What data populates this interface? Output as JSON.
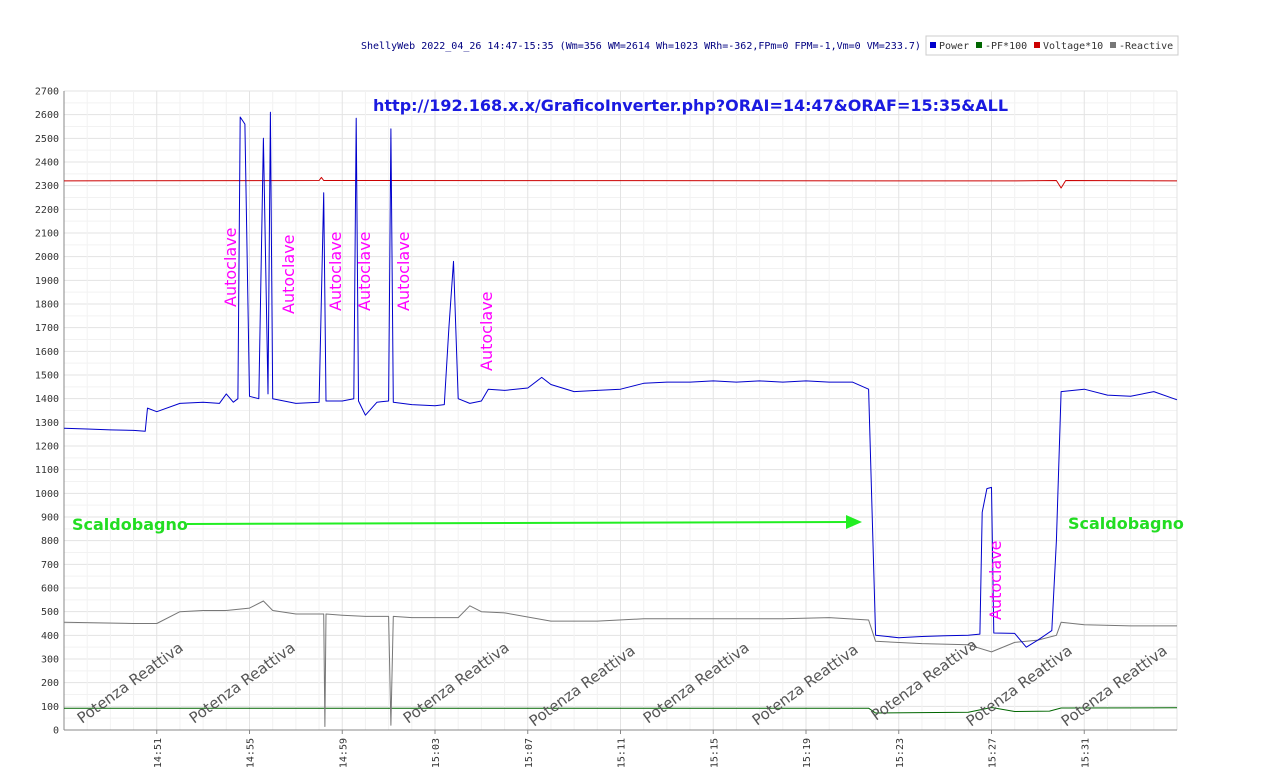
{
  "header": {
    "summary": "ShellyWeb 2022_04_26 14:47-15:35 (Wm=356 WM=2614 Wh=1023 WRh=-362,FPm=0 FPM=-1,Vm=0 VM=233.7)"
  },
  "legend": {
    "placement": "top-right",
    "items": [
      {
        "label": "Power",
        "color": "#0000cc"
      },
      {
        "label": "-PF*100",
        "color": "#006600"
      },
      {
        "label": "Voltage*10",
        "color": "#cc0000"
      },
      {
        "label": "-Reactive",
        "color": "#777777"
      }
    ]
  },
  "annotations": {
    "url": "http://192.168.x.x/GraficoInverter.php?ORAI=14:47&ORAF=15:35&ALL",
    "autoclave": "Autoclave",
    "scaldobagno": "Scaldobagno",
    "reattiva": "Potenza Reattiva"
  },
  "chart_data": {
    "type": "line",
    "title": "",
    "xlabel": "",
    "ylabel": "",
    "grid": true,
    "xlim": [
      "14:47",
      "15:35"
    ],
    "ylim": [
      0,
      2700
    ],
    "y_ticks": [
      0,
      100,
      200,
      300,
      400,
      500,
      600,
      700,
      800,
      900,
      1000,
      1100,
      1200,
      1300,
      1400,
      1500,
      1600,
      1700,
      1800,
      1900,
      2000,
      2100,
      2200,
      2300,
      2400,
      2500,
      2600,
      2700
    ],
    "x_ticks": [
      "14:51",
      "14:55",
      "14:59",
      "15:03",
      "15:07",
      "15:11",
      "15:15",
      "15:19",
      "15:23",
      "15:27",
      "15:31"
    ],
    "series": [
      {
        "name": "Power",
        "color": "#0000cc",
        "points": [
          [
            "14:47",
            1275
          ],
          [
            "14:48",
            1272
          ],
          [
            "14:49",
            1268
          ],
          [
            "14:50",
            1266
          ],
          [
            "14:50.5",
            1262
          ],
          [
            "14:50.6",
            1360
          ],
          [
            "14:51",
            1345
          ],
          [
            "14:52",
            1380
          ],
          [
            "14:53",
            1385
          ],
          [
            "14:53.7",
            1380
          ],
          [
            "14:54",
            1420
          ],
          [
            "14:54.3",
            1385
          ],
          [
            "14:54.5",
            1400
          ],
          [
            "14:54.6",
            2590
          ],
          [
            "14:54.8",
            2560
          ],
          [
            "14:55",
            1410
          ],
          [
            "14:55.4",
            1400
          ],
          [
            "14:55.6",
            2500
          ],
          [
            "14:55.8",
            1420
          ],
          [
            "14:55.9",
            2610
          ],
          [
            "14:56",
            1400
          ],
          [
            "14:57",
            1380
          ],
          [
            "14:58",
            1385
          ],
          [
            "14:58.2",
            2270
          ],
          [
            "14:58.3",
            1390
          ],
          [
            "14:59",
            1390
          ],
          [
            "14:59.5",
            1400
          ],
          [
            "14:59.6",
            2585
          ],
          [
            "14:59.7",
            1390
          ],
          [
            "15:00",
            1330
          ],
          [
            "15:00.5",
            1385
          ],
          [
            "15:01",
            1390
          ],
          [
            "15:01.1",
            2540
          ],
          [
            "15:01.2",
            1385
          ],
          [
            "15:02",
            1375
          ],
          [
            "15:03",
            1370
          ],
          [
            "15:03.4",
            1375
          ],
          [
            "15:03.6",
            1700
          ],
          [
            "15:03.8",
            1980
          ],
          [
            "15:04",
            1400
          ],
          [
            "15:04.5",
            1380
          ],
          [
            "15:05",
            1390
          ],
          [
            "15:05.3",
            1440
          ],
          [
            "15:06",
            1435
          ],
          [
            "15:07",
            1445
          ],
          [
            "15:07.6",
            1490
          ],
          [
            "15:08",
            1460
          ],
          [
            "15:09",
            1430
          ],
          [
            "15:10",
            1435
          ],
          [
            "15:11",
            1440
          ],
          [
            "15:12",
            1465
          ],
          [
            "15:13",
            1470
          ],
          [
            "15:14",
            1470
          ],
          [
            "15:15",
            1475
          ],
          [
            "15:16",
            1470
          ],
          [
            "15:17",
            1475
          ],
          [
            "15:18",
            1470
          ],
          [
            "15:19",
            1475
          ],
          [
            "15:20",
            1470
          ],
          [
            "15:21",
            1470
          ],
          [
            "15:21.7",
            1440
          ],
          [
            "15:22",
            400
          ],
          [
            "15:23",
            390
          ],
          [
            "15:24",
            395
          ],
          [
            "15:25",
            398
          ],
          [
            "15:26",
            400
          ],
          [
            "15:26.5",
            405
          ],
          [
            "15:26.6",
            920
          ],
          [
            "15:26.8",
            1020
          ],
          [
            "15:27",
            1025
          ],
          [
            "15:27.1",
            410
          ],
          [
            "15:28",
            408
          ],
          [
            "15:28.5",
            350
          ],
          [
            "15:29",
            380
          ],
          [
            "15:29.6",
            420
          ],
          [
            "15:29.8",
            800
          ],
          [
            "15:30",
            1430
          ],
          [
            "15:31",
            1440
          ],
          [
            "15:32",
            1415
          ],
          [
            "15:33",
            1410
          ],
          [
            "15:34",
            1430
          ],
          [
            "15:35",
            1395
          ]
        ]
      },
      {
        "name": "Voltage*10",
        "color": "#cc0000",
        "points": [
          [
            "14:47",
            2320
          ],
          [
            "14:58",
            2322
          ],
          [
            "14:58.1",
            2335
          ],
          [
            "14:58.2",
            2322
          ],
          [
            "15:28",
            2320
          ],
          [
            "15:29.8",
            2322
          ],
          [
            "15:30",
            2290
          ],
          [
            "15:30.2",
            2322
          ],
          [
            "15:35",
            2320
          ]
        ]
      },
      {
        "name": "-Reactive",
        "color": "#777777",
        "points": [
          [
            "14:47",
            455
          ],
          [
            "14:50",
            450
          ],
          [
            "14:51",
            450
          ],
          [
            "14:52",
            500
          ],
          [
            "14:53",
            505
          ],
          [
            "14:54",
            505
          ],
          [
            "14:55",
            515
          ],
          [
            "14:55.6",
            545
          ],
          [
            "14:56",
            505
          ],
          [
            "14:57",
            490
          ],
          [
            "14:58",
            490
          ],
          [
            "14:58.2",
            490
          ],
          [
            "14:58.25",
            15
          ],
          [
            "14:58.3",
            490
          ],
          [
            "14:59",
            485
          ],
          [
            "15:00",
            480
          ],
          [
            "15:01",
            480
          ],
          [
            "15:01.1",
            20
          ],
          [
            "15:01.2",
            480
          ],
          [
            "15:02",
            475
          ],
          [
            "15:03",
            475
          ],
          [
            "15:04",
            475
          ],
          [
            "15:04.5",
            525
          ],
          [
            "15:05",
            500
          ],
          [
            "15:06",
            495
          ],
          [
            "15:08",
            460
          ],
          [
            "15:10",
            460
          ],
          [
            "15:12",
            470
          ],
          [
            "15:14",
            470
          ],
          [
            "15:16",
            470
          ],
          [
            "15:18",
            470
          ],
          [
            "15:20",
            475
          ],
          [
            "15:21.7",
            465
          ],
          [
            "15:22",
            375
          ],
          [
            "15:24",
            365
          ],
          [
            "15:26",
            360
          ],
          [
            "15:27",
            330
          ],
          [
            "15:28",
            370
          ],
          [
            "15:29",
            380
          ],
          [
            "15:29.8",
            400
          ],
          [
            "15:30",
            455
          ],
          [
            "15:31",
            445
          ],
          [
            "15:33",
            440
          ],
          [
            "15:35",
            440
          ]
        ]
      },
      {
        "name": "-PF*100",
        "color": "#006600",
        "points": [
          [
            "14:47",
            92
          ],
          [
            "15:21.7",
            92
          ],
          [
            "15:22",
            72
          ],
          [
            "15:26",
            75
          ],
          [
            "15:27",
            95
          ],
          [
            "15:28",
            78
          ],
          [
            "15:29.5",
            80
          ],
          [
            "15:30",
            93
          ],
          [
            "15:35",
            94
          ]
        ]
      }
    ]
  }
}
